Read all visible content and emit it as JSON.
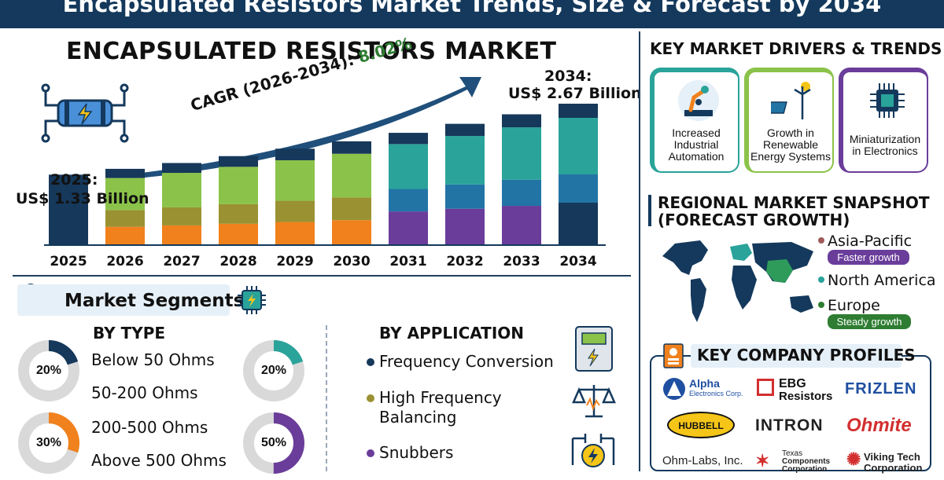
{
  "banner": {
    "title": "Encapsulated Resistors Market Trends, Size & Forecast by 2034"
  },
  "chart_title": "ENCAPSULATED RESISTORS MARKET",
  "start_label": {
    "year": "2025:",
    "value": "US$ 1.33 Billion"
  },
  "end_label": {
    "year": "2034:",
    "value": "US$ 2.67 Billion"
  },
  "cagr": {
    "prefix": "CAGR (2026-2034): ",
    "value": "8.02%"
  },
  "chart_data": {
    "type": "bar",
    "stacked": true,
    "categories": [
      "2025",
      "2026",
      "2027",
      "2028",
      "2029",
      "2030",
      "2031",
      "2032",
      "2033",
      "2034"
    ],
    "unit": "US$ Billion",
    "totals": [
      1.33,
      1.44,
      1.55,
      1.68,
      1.82,
      1.96,
      2.12,
      2.29,
      2.47,
      2.67
    ],
    "colors": {
      "top": "#16385a",
      "teal": "#2aa39a",
      "green": "#8bc34a",
      "olive": "#9a9132",
      "orange": "#f0811c",
      "blue": "#2274a5",
      "purple": "#6a3d9a",
      "navy": "#16385a"
    }
  },
  "segments": {
    "title": "Market Segments",
    "by_type": {
      "heading": "BY TYPE",
      "items": [
        "Below 50 Ohms",
        "50-200 Ohms",
        "200-500 Ohms",
        "Above 500 Ohms"
      ],
      "donuts": [
        {
          "pct": "20%",
          "value": 0.2,
          "color": "#16385a"
        },
        {
          "pct": "20%",
          "value": 0.2,
          "color": "#2aa39a"
        },
        {
          "pct": "30%",
          "value": 0.3,
          "color": "#f0811c"
        },
        {
          "pct": "50%",
          "value": 0.5,
          "color": "#6a3d9a"
        }
      ]
    },
    "by_application": {
      "heading": "BY APPLICATION",
      "items": [
        {
          "label": "Frequency Conversion",
          "color": "#16385a"
        },
        {
          "label": "High Frequency\nBalancing",
          "color": "#9a9132"
        },
        {
          "label": "Snubbers",
          "color": "#6a3d9a"
        }
      ]
    }
  },
  "drivers": {
    "heading": "KEY MARKET DRIVERS & TRENDS",
    "cards": [
      {
        "label": "Increased Industrial Automation",
        "accent": "#2aa39a",
        "icon": "robot-arm-icon"
      },
      {
        "label": "Growth in Renewable Energy Systems",
        "accent": "#8bc34a",
        "icon": "solar-wind-icon"
      },
      {
        "label": "Miniaturization in Electronics",
        "accent": "#6a3d9a",
        "icon": "chip-icon"
      }
    ]
  },
  "regional": {
    "heading_line1": "REGIONAL MARKET SNAPSHOT",
    "heading_line2": "(FORECAST GROWTH)",
    "regions": [
      {
        "name": "Asia-Pacific",
        "dot": "#a05a5a",
        "pill": "Faster growth",
        "pill_color": "#6a3d9a"
      },
      {
        "name": "North America",
        "dot": "#2aa39a",
        "pill": "",
        "pill_color": ""
      },
      {
        "name": "Europe",
        "dot": "#2e7d32",
        "pill": "Steady growth",
        "pill_color": "#2e7d32"
      }
    ]
  },
  "companies": {
    "heading": "KEY COMPANY PROFILES",
    "logos": [
      {
        "name": "Alpha",
        "sub": "Electronics Corp."
      },
      {
        "name": "EBG",
        "sub": "Resistors"
      },
      {
        "name": "FRIZLEN"
      },
      {
        "name": "HUBBELL"
      },
      {
        "name": "INTRON"
      },
      {
        "name": "Ohmite"
      },
      {
        "name": "Ohm-Labs, Inc."
      },
      {
        "name": "Texas",
        "sub": "Components\nCorporation"
      },
      {
        "name": "Viking Tech",
        "sub": "Corporation"
      }
    ]
  }
}
